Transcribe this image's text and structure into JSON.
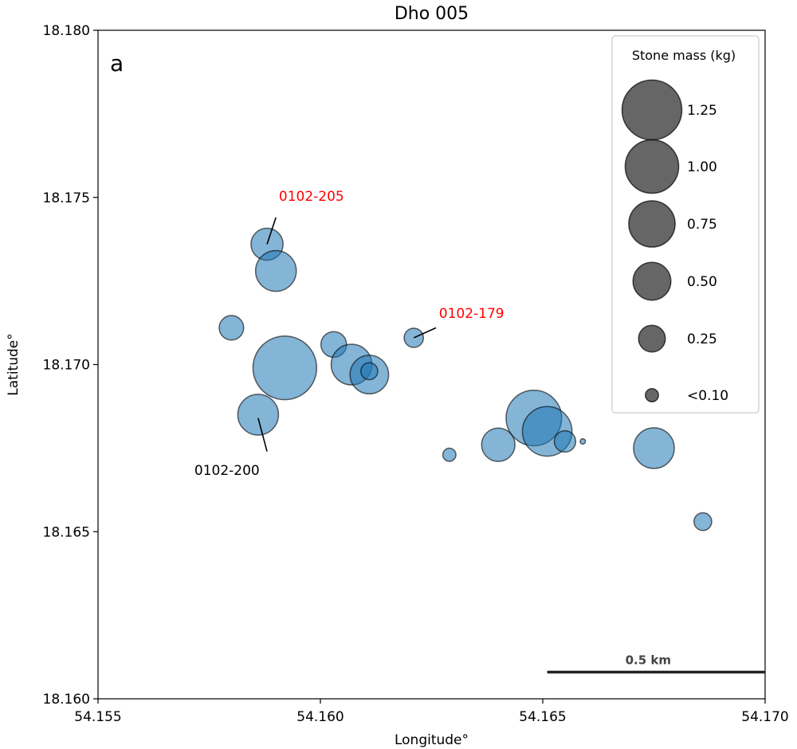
{
  "chart_data": {
    "type": "scatter",
    "title": "Dho 005",
    "panel_label": "a",
    "xlabel": "Longitude°",
    "ylabel": "Latitude°",
    "xlim": [
      54.155,
      54.17
    ],
    "ylim": [
      18.16,
      18.18
    ],
    "x_ticks": [
      "54.155",
      "54.160",
      "54.165",
      "54.170"
    ],
    "y_ticks": [
      "18.160",
      "18.165",
      "18.170",
      "18.175",
      "18.180"
    ],
    "grid": false,
    "point_color": "#1f77b4",
    "points": [
      {
        "x": 54.1588,
        "y": 18.1736,
        "mass": 0.36
      },
      {
        "x": 54.159,
        "y": 18.1728,
        "mass": 0.58
      },
      {
        "x": 54.158,
        "y": 18.1711,
        "mass": 0.21
      },
      {
        "x": 54.1592,
        "y": 18.1699,
        "mass": 1.42
      },
      {
        "x": 54.1603,
        "y": 18.1706,
        "mass": 0.23
      },
      {
        "x": 54.1607,
        "y": 18.17,
        "mass": 0.58
      },
      {
        "x": 54.1611,
        "y": 18.1697,
        "mass": 0.52
      },
      {
        "x": 54.1611,
        "y": 18.1698,
        "mass": 0.1
      },
      {
        "x": 54.1621,
        "y": 18.1708,
        "mass": 0.13
      },
      {
        "x": 54.1586,
        "y": 18.1685,
        "mass": 0.58
      },
      {
        "x": 54.1629,
        "y": 18.1673,
        "mass": 0.06
      },
      {
        "x": 54.164,
        "y": 18.1676,
        "mass": 0.39
      },
      {
        "x": 54.1648,
        "y": 18.1684,
        "mass": 1.08
      },
      {
        "x": 54.1651,
        "y": 18.168,
        "mass": 0.86
      },
      {
        "x": 54.1655,
        "y": 18.1677,
        "mass": 0.16
      },
      {
        "x": 54.1659,
        "y": 18.1677,
        "mass": 0.01
      },
      {
        "x": 54.1675,
        "y": 18.1675,
        "mass": 0.58
      },
      {
        "x": 54.1686,
        "y": 18.1653,
        "mass": 0.11
      }
    ],
    "annotations": [
      {
        "text": "0102-205",
        "color": "#ff0000",
        "point": [
          54.1588,
          18.1736
        ],
        "label_pos": [
          54.1598,
          18.1749
        ],
        "line_to": [
          54.159,
          18.1744
        ]
      },
      {
        "text": "0102-179",
        "color": "#ff0000",
        "point": [
          54.1621,
          18.1708
        ],
        "label_pos": [
          54.1634,
          18.1714
        ],
        "line_to": [
          54.1626,
          18.1711
        ]
      },
      {
        "text": "0102-200",
        "color": "#000000",
        "point": [
          54.1586,
          18.1684
        ],
        "label_pos": [
          54.1579,
          18.1667
        ],
        "line_to": [
          54.1588,
          18.1674
        ]
      }
    ],
    "legend": {
      "title": "Stone mass (kg)",
      "position": "upper-right",
      "entries": [
        {
          "label": "1.25",
          "mass": 1.25
        },
        {
          "label": "1.00",
          "mass": 1.0
        },
        {
          "label": "0.75",
          "mass": 0.75
        },
        {
          "label": "0.50",
          "mass": 0.5
        },
        {
          "label": "0.25",
          "mass": 0.25
        },
        {
          "label": "<0.10",
          "mass": 0.06
        }
      ]
    },
    "scale_bar": {
      "label": "0.5 km",
      "x_start": 54.1651,
      "x_end": 54.17,
      "y": 18.1608
    }
  }
}
